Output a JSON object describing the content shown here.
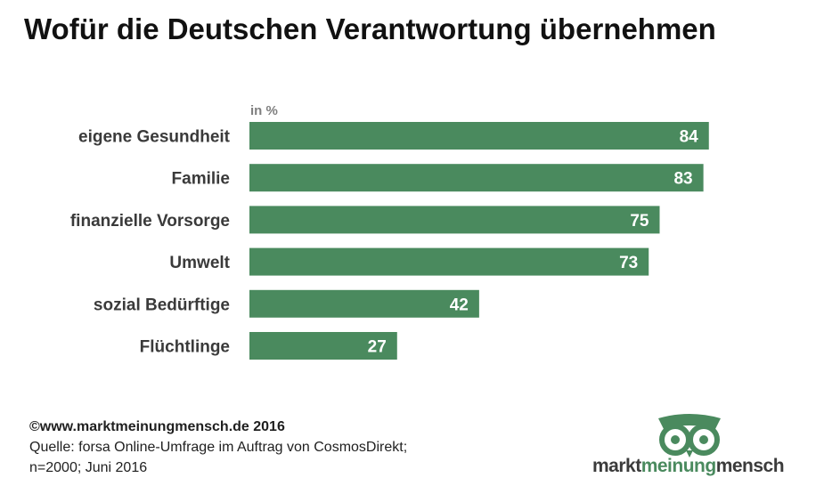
{
  "header": {
    "title": "Wofür die Deutschen Verantwortung übernehmen"
  },
  "chart_data": {
    "type": "bar",
    "orientation": "horizontal",
    "title": "Wofür die Deutschen Verantwortung übernehmen",
    "unit_label": "in %",
    "categories": [
      "eigene Gesundheit",
      "Familie",
      "finanzielle Vorsorge",
      "Umwelt",
      "sozial Bedürftige",
      "Flüchtlinge"
    ],
    "values": [
      84,
      83,
      75,
      73,
      42,
      27
    ],
    "xlim": [
      0,
      100
    ],
    "grid": false,
    "bar_color": "#4a8a5e",
    "label_color": "#ffffff"
  },
  "footer": {
    "copyright": "©www.marktmeinungmensch.de 2016",
    "source_line1": "Quelle: forsa Online-Umfrage im Auftrag von CosmosDirekt;",
    "source_line2": "n=2000; Juni 2016"
  },
  "logo": {
    "part1": "markt",
    "part2": "meinung",
    "part3": "mensch",
    "icon": "owl-icon"
  }
}
